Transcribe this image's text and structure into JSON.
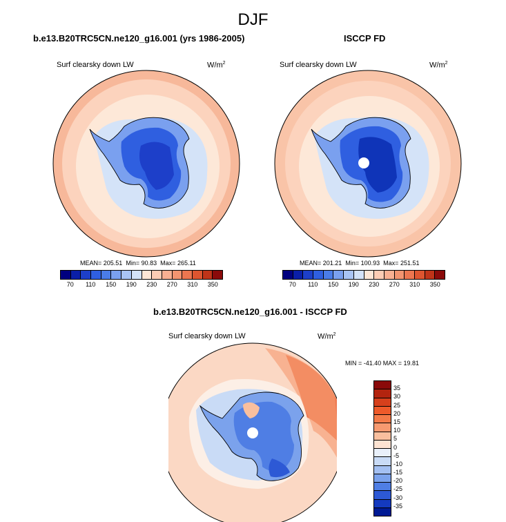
{
  "figure": {
    "title": "DJF"
  },
  "panels": [
    {
      "title": "b.e13.B20TRC5CN.ne120_g16.001 (yrs 1986-2005)",
      "variable": "Surf clearsky down LW",
      "units_base": "W/m",
      "units_exp": "2",
      "mean_label": "MEAN=",
      "mean": "205.51",
      "min_label": "Min=",
      "min": " 90.83",
      "max_label": "Max=",
      "max": "265.11"
    },
    {
      "title": "ISCCP FD",
      "variable": "Surf clearsky down LW",
      "units_base": "W/m",
      "units_exp": "2",
      "mean_label": "MEAN=",
      "mean": "201.21",
      "min_label": "Min=",
      "min": "100.93",
      "max_label": "Max=",
      "max": "251.51"
    },
    {
      "title": "b.e13.B20TRC5CN.ne120_g16.001 - ISCCP FD",
      "variable": "Surf clearsky down LW",
      "units_base": "W/m",
      "units_exp": "2",
      "minmax": "MIN = -41.40 MAX =  19.81"
    }
  ],
  "colorbar_abs": {
    "ticks": [
      "70",
      "110",
      "150",
      "190",
      "230",
      "270",
      "310",
      "350"
    ],
    "colors": [
      "#00007f",
      "#0a1fa8",
      "#1d3fc9",
      "#2f5fe0",
      "#4a7ce8",
      "#7aa0ef",
      "#a9c4f4",
      "#d3e2f8",
      "#fde6d6",
      "#fcccb4",
      "#f9b092",
      "#f39470",
      "#ec7650",
      "#dd5530",
      "#bf3419",
      "#8a0a0a"
    ]
  },
  "colorbar_diff": {
    "ticks": [
      "35",
      "30",
      "25",
      "20",
      "15",
      "10",
      "5",
      "0",
      "-5",
      "-10",
      "-15",
      "-20",
      "-25",
      "-30",
      "-35"
    ],
    "colors": [
      "#8a0a0a",
      "#b3240f",
      "#d6401c",
      "#ee5a2a",
      "#f47a48",
      "#f79a70",
      "#f9bf9e",
      "#fde3d2",
      "#e9f0fa",
      "#c9dbf6",
      "#a4c0f2",
      "#7ba2ec",
      "#4f7ee4",
      "#2d59d5",
      "#143abf",
      "#001a94"
    ]
  },
  "colors": {
    "ocean_far": "#f7b89a",
    "ocean_mid": "#fcd3bd",
    "ocean_near": "#fde8d8",
    "sea_ice": "#d4e3f8",
    "coast": "#a9c6f4",
    "land_edge": "#4c7fea",
    "land_core": "#1d46d3",
    "land_deep": "#0f34b8",
    "diff_ocean": "#fbd8c4",
    "diff_warm": "#ee7a52",
    "diff_light": "#fcefe6"
  },
  "map_icons": [
    "south-polar-stereographic-map",
    "antarctica-outline-icon",
    "pole-hole-icon"
  ]
}
